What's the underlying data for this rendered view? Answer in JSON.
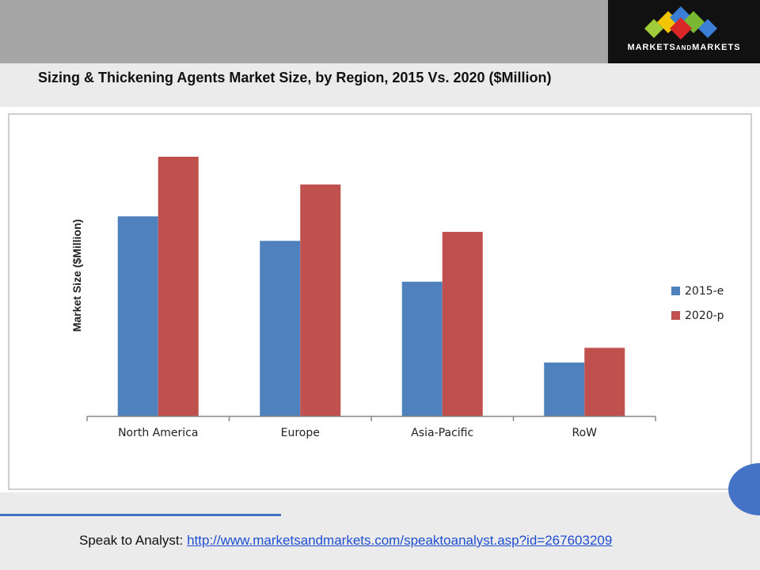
{
  "header": {
    "logo": {
      "text_left": "MARKETS",
      "text_mid": "AND",
      "text_right": "MARKETS"
    },
    "title": "Sizing & Thickening Agents Market Size, by Region, 2015 Vs. 2020 ($Million)"
  },
  "colors": {
    "series_2015": "#4f81bd",
    "series_2020": "#c0504d",
    "accent_blue": "#4472c4"
  },
  "chart_data": {
    "type": "bar",
    "title": "",
    "xlabel": "",
    "ylabel": "Market Size ($Million)",
    "categories": [
      "North America",
      "Europe",
      "Asia-Pacific",
      "RoW"
    ],
    "series": [
      {
        "name": "2015-e",
        "values": [
          245,
          215,
          165,
          66
        ]
      },
      {
        "name": "2020-p",
        "values": [
          318,
          284,
          226,
          84
        ]
      }
    ],
    "ylim": [
      0,
      350
    ],
    "grid": false,
    "legend_position": "right",
    "y_tick_labels_shown": false
  },
  "footer": {
    "label": "Speak to Analyst: ",
    "link": "http://www.marketsandmarkets.com/speaktoanalyst.asp?id=267603209"
  }
}
